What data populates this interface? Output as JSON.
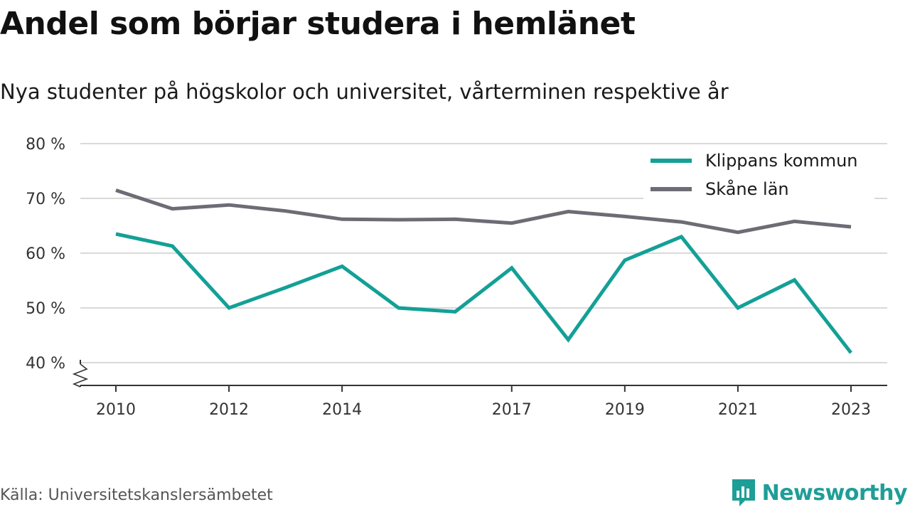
{
  "title": "Andel som börjar studera i hemlänet",
  "subtitle": "Nya studenter på högskolor och universitet, vårterminen respektive år",
  "source": "Källa: Universitetskanslersämbetet",
  "brand": "Newsworthy",
  "colors": {
    "klippans": "#13a096",
    "skane": "#6d6c75",
    "grid": "#d9d9d9",
    "axis": "#333333",
    "brand": "#1e9e97"
  },
  "chart_data": {
    "type": "line",
    "x": [
      2010,
      2011,
      2012,
      2013,
      2014,
      2015,
      2016,
      2017,
      2018,
      2019,
      2020,
      2021,
      2022,
      2023
    ],
    "x_tick_labels": [
      "2010",
      "2012",
      "2014",
      "2017",
      "2019",
      "2021",
      "2023"
    ],
    "y_tick_labels": [
      "80 %",
      "70 %",
      "60 %",
      "50 %",
      "40 %"
    ],
    "y_ticks": [
      80,
      70,
      60,
      50,
      40
    ],
    "ylim": [
      40,
      80
    ],
    "y_axis_break": true,
    "grid": true,
    "legend_position": "top-right",
    "series": [
      {
        "name": "Klippans kommun",
        "color": "#13a096",
        "values": [
          63.5,
          61.3,
          50.0,
          53.7,
          57.6,
          50.0,
          49.3,
          57.3,
          44.2,
          58.7,
          63.0,
          50.0,
          55.1,
          41.8
        ]
      },
      {
        "name": "Skåne län",
        "color": "#6d6c75",
        "values": [
          71.5,
          68.1,
          68.8,
          67.7,
          66.2,
          66.1,
          66.2,
          65.5,
          67.6,
          66.7,
          65.7,
          63.8,
          65.8,
          64.8
        ]
      }
    ]
  }
}
